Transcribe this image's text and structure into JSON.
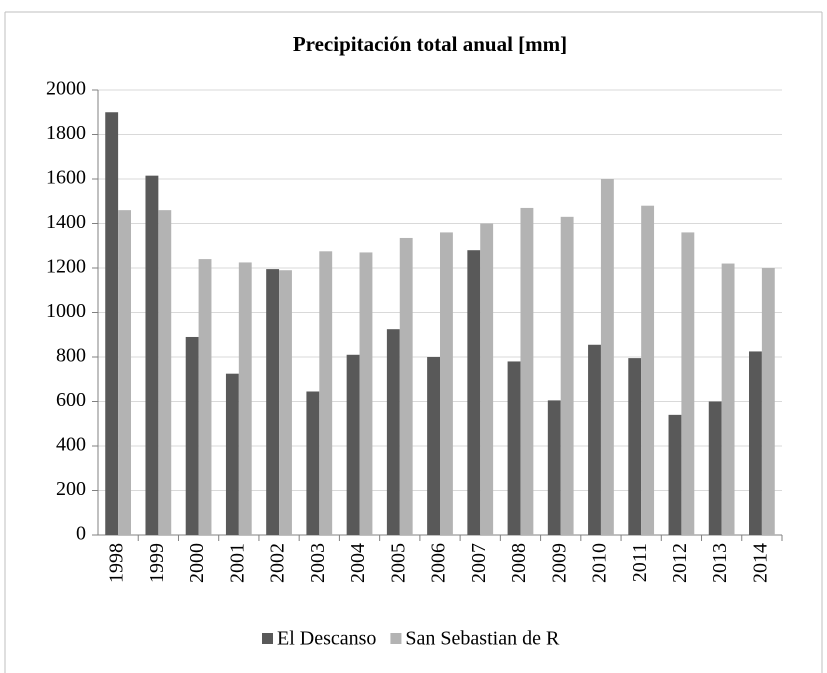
{
  "chart_data": {
    "type": "bar",
    "title": "Precipitación total anual [mm]",
    "categories": [
      "1998",
      "1999",
      "2000",
      "2001",
      "2002",
      "2003",
      "2004",
      "2005",
      "2006",
      "2007",
      "2008",
      "2009",
      "2010",
      "2011",
      "2012",
      "2013",
      "2014"
    ],
    "series": [
      {
        "name": "El Descanso",
        "color": "#595959",
        "values": [
          1900,
          1615,
          890,
          725,
          1195,
          645,
          810,
          925,
          800,
          1280,
          780,
          605,
          855,
          795,
          540,
          600,
          825
        ]
      },
      {
        "name": "San Sebastian de R",
        "color": "#b3b3b3",
        "values": [
          1460,
          1460,
          1240,
          1225,
          1190,
          1275,
          1270,
          1335,
          1360,
          1400,
          1470,
          1430,
          1600,
          1480,
          1360,
          1220,
          1200
        ]
      }
    ],
    "ylim": [
      0,
      2000
    ],
    "yticks": [
      0,
      200,
      400,
      600,
      800,
      1000,
      1200,
      1400,
      1600,
      1800,
      2000
    ],
    "grid": true,
    "legend": "bottom"
  }
}
